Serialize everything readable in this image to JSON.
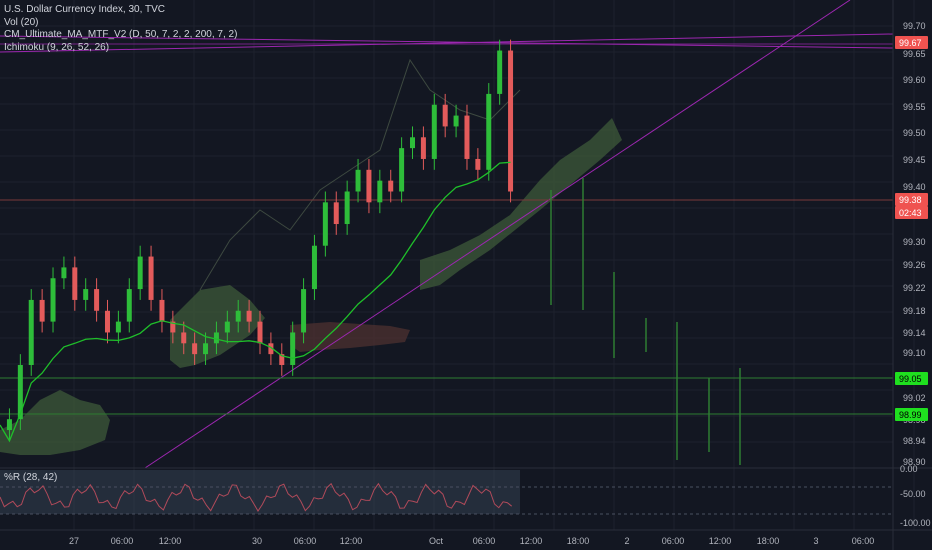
{
  "header": {
    "symbol": "U.S. Dollar Currency Index, 30, TVC",
    "indicators": [
      "Vol (20)",
      "CM_Ultimate_MA_MTF_V2 (D, 50, 7, 2, 2, 200, 7, 2)",
      "Ichimoku (9, 26, 52, 26)"
    ],
    "oscillator": "%R (28, 42)"
  },
  "colors": {
    "background": "#131722",
    "up": "#26a69a",
    "down": "#ef5350",
    "candle_up": "#2ebd3a",
    "candle_down": "#e35b5b",
    "ma": "#1fbf2a",
    "cloud": "#3d5a3a",
    "trendline": "#9c27b0",
    "level_line": "#2e7d32",
    "price_badge": "#ef5350",
    "support_badge": "#1fe01f"
  },
  "price_axis": {
    "ticks": [
      "99.70",
      "99.65",
      "99.60",
      "99.55",
      "99.50",
      "99.45",
      "99.40",
      "99.30",
      "99.26",
      "99.22",
      "99.18",
      "99.14",
      "99.10",
      "99.06",
      "99.02",
      "98.98",
      "98.94",
      "98.90"
    ],
    "badges": {
      "high": "99.67",
      "last": "99.38",
      "countdown": "02:43",
      "level1": "99.05",
      "level2": "98.99"
    }
  },
  "osc_axis": {
    "ticks": [
      "0.00",
      "-50.00",
      "-100.00"
    ]
  },
  "time_axis": {
    "ticks": [
      "27",
      "06:00",
      "12:00",
      "30",
      "06:00",
      "12:00",
      "Oct",
      "06:00",
      "12:00",
      "18:00",
      "2",
      "06:00",
      "12:00",
      "18:00",
      "3",
      "06:00"
    ]
  },
  "chart_data": {
    "type": "candlestick",
    "title": "U.S. Dollar Currency Index, 30, TVC",
    "y_range": [
      98.89,
      99.72
    ],
    "horizontal_levels": [
      99.67,
      99.38,
      99.05,
      98.99
    ],
    "close_series_approx": [
      98.98,
      99.08,
      99.2,
      99.16,
      99.24,
      99.26,
      99.2,
      99.22,
      99.18,
      99.14,
      99.16,
      99.22,
      99.28,
      99.2,
      99.16,
      99.14,
      99.12,
      99.1,
      99.12,
      99.14,
      99.16,
      99.18,
      99.16,
      99.12,
      99.1,
      99.08,
      99.14,
      99.22,
      99.3,
      99.38,
      99.34,
      99.4,
      99.44,
      99.38,
      99.42,
      99.4,
      99.48,
      99.5,
      99.46,
      99.56,
      99.52,
      99.54,
      99.46,
      99.44,
      99.58,
      99.66,
      99.4
    ]
  }
}
